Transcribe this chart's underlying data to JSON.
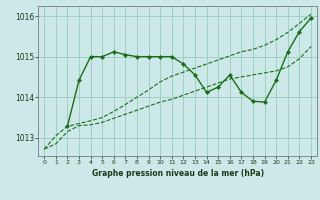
{
  "title": "Graphe pression niveau de la mer (hPa)",
  "bg_color": "#cce8e8",
  "grid_color": "#99ccbb",
  "line_color": "#1a6e1a",
  "xlim": [
    -0.5,
    23.5
  ],
  "ylim": [
    1012.55,
    1016.25
  ],
  "yticks": [
    1013,
    1014,
    1015,
    1016
  ],
  "xticks": [
    0,
    1,
    2,
    3,
    4,
    5,
    6,
    7,
    8,
    9,
    10,
    11,
    12,
    13,
    14,
    15,
    16,
    17,
    18,
    19,
    20,
    21,
    22,
    23
  ],
  "series": [
    {
      "x": [
        0,
        1,
        2,
        3,
        4,
        5,
        6,
        7,
        8,
        9,
        10,
        11,
        12,
        13,
        14,
        15,
        16,
        17,
        18,
        19,
        20,
        21,
        22,
        23
      ],
      "y": [
        1012.72,
        1012.85,
        1013.15,
        1013.3,
        1013.32,
        1013.38,
        1013.48,
        1013.58,
        1013.68,
        1013.78,
        1013.88,
        1013.95,
        1014.05,
        1014.15,
        1014.25,
        1014.35,
        1014.45,
        1014.5,
        1014.55,
        1014.6,
        1014.65,
        1014.75,
        1014.95,
        1015.25
      ],
      "marker": null,
      "linestyle": "--",
      "linewidth": 0.8
    },
    {
      "x": [
        0,
        1,
        2,
        3,
        4,
        5,
        6,
        7,
        8,
        9,
        10,
        11,
        12,
        13,
        14,
        15,
        16,
        17,
        18,
        19,
        20,
        21,
        22,
        23
      ],
      "y": [
        1012.72,
        1013.05,
        1013.28,
        1013.35,
        1013.42,
        1013.5,
        1013.65,
        1013.82,
        1014.0,
        1014.18,
        1014.38,
        1014.52,
        1014.62,
        1014.72,
        1014.82,
        1014.92,
        1015.02,
        1015.12,
        1015.18,
        1015.28,
        1015.42,
        1015.6,
        1015.82,
        1016.05
      ],
      "marker": null,
      "linestyle": "--",
      "linewidth": 0.8
    },
    {
      "x": [
        2,
        3,
        4,
        5,
        6,
        7,
        8,
        9,
        10,
        11,
        12,
        13,
        14,
        15,
        16,
        17,
        18,
        19,
        20,
        21,
        22,
        23
      ],
      "y": [
        1013.28,
        1014.42,
        1015.0,
        1015.0,
        1015.12,
        1015.05,
        1015.0,
        1015.0,
        1015.0,
        1015.0,
        1014.82,
        1014.55,
        1014.12,
        1014.25,
        1014.55,
        1014.12,
        1013.9,
        1013.88,
        1014.42,
        1015.12,
        1015.62,
        1015.95
      ],
      "marker": "D",
      "markersize": 2.0,
      "linestyle": "-",
      "linewidth": 1.0
    }
  ]
}
